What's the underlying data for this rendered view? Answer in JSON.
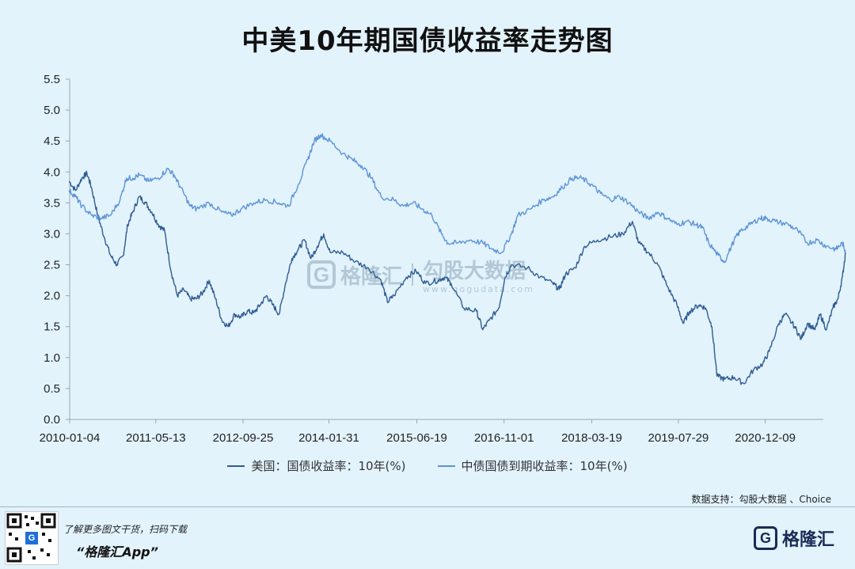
{
  "chart_data": {
    "type": "line",
    "title": "中美10年期国债收益率走势图",
    "xlabel": "",
    "ylabel": "",
    "ylim": [
      0,
      5.5
    ],
    "yticks": [
      "0.0",
      "0.5",
      "1.0",
      "1.5",
      "2.0",
      "2.5",
      "3.0",
      "3.5",
      "4.0",
      "4.5",
      "5.0",
      "5.5"
    ],
    "xticks": [
      "2010-01-04",
      "2011-05-13",
      "2012-09-25",
      "2014-01-31",
      "2015-06-19",
      "2016-11-01",
      "2018-03-19",
      "2019-07-29",
      "2020-12-09"
    ],
    "x_end": 2021.85,
    "legend_position": "bottom",
    "grid": false,
    "series": [
      {
        "name": "美国：国债收益率：10年(%)",
        "color": "#2f5b93",
        "points": [
          [
            2010.0,
            3.85
          ],
          [
            2010.1,
            3.7
          ],
          [
            2010.2,
            3.9
          ],
          [
            2010.28,
            3.98
          ],
          [
            2010.35,
            3.75
          ],
          [
            2010.45,
            3.3
          ],
          [
            2010.55,
            2.95
          ],
          [
            2010.65,
            2.65
          ],
          [
            2010.75,
            2.5
          ],
          [
            2010.85,
            2.65
          ],
          [
            2010.92,
            3.15
          ],
          [
            2011.0,
            3.35
          ],
          [
            2011.1,
            3.6
          ],
          [
            2011.2,
            3.5
          ],
          [
            2011.3,
            3.35
          ],
          [
            2011.4,
            3.15
          ],
          [
            2011.5,
            3.05
          ],
          [
            2011.6,
            2.4
          ],
          [
            2011.7,
            2.0
          ],
          [
            2011.8,
            2.1
          ],
          [
            2011.9,
            1.95
          ],
          [
            2012.0,
            1.95
          ],
          [
            2012.1,
            2.05
          ],
          [
            2012.2,
            2.25
          ],
          [
            2012.3,
            1.95
          ],
          [
            2012.4,
            1.6
          ],
          [
            2012.5,
            1.5
          ],
          [
            2012.6,
            1.7
          ],
          [
            2012.7,
            1.65
          ],
          [
            2012.8,
            1.75
          ],
          [
            2012.9,
            1.72
          ],
          [
            2013.0,
            1.85
          ],
          [
            2013.1,
            2.0
          ],
          [
            2013.2,
            1.85
          ],
          [
            2013.3,
            1.7
          ],
          [
            2013.4,
            2.2
          ],
          [
            2013.5,
            2.6
          ],
          [
            2013.6,
            2.75
          ],
          [
            2013.7,
            2.9
          ],
          [
            2013.8,
            2.6
          ],
          [
            2013.9,
            2.8
          ],
          [
            2014.0,
            3.0
          ],
          [
            2014.1,
            2.7
          ],
          [
            2014.3,
            2.7
          ],
          [
            2014.5,
            2.55
          ],
          [
            2014.7,
            2.45
          ],
          [
            2014.9,
            2.25
          ],
          [
            2015.0,
            1.9
          ],
          [
            2015.1,
            2.0
          ],
          [
            2015.3,
            2.3
          ],
          [
            2015.45,
            2.4
          ],
          [
            2015.6,
            2.2
          ],
          [
            2015.8,
            2.25
          ],
          [
            2015.9,
            2.3
          ],
          [
            2016.0,
            2.2
          ],
          [
            2016.2,
            1.8
          ],
          [
            2016.4,
            1.75
          ],
          [
            2016.5,
            1.45
          ],
          [
            2016.6,
            1.6
          ],
          [
            2016.75,
            1.8
          ],
          [
            2016.85,
            2.3
          ],
          [
            2016.95,
            2.5
          ],
          [
            2017.2,
            2.45
          ],
          [
            2017.4,
            2.3
          ],
          [
            2017.6,
            2.2
          ],
          [
            2017.7,
            2.1
          ],
          [
            2017.8,
            2.35
          ],
          [
            2017.95,
            2.45
          ],
          [
            2018.1,
            2.8
          ],
          [
            2018.3,
            2.9
          ],
          [
            2018.5,
            2.95
          ],
          [
            2018.7,
            3.0
          ],
          [
            2018.85,
            3.2
          ],
          [
            2018.95,
            2.85
          ],
          [
            2019.1,
            2.7
          ],
          [
            2019.25,
            2.5
          ],
          [
            2019.4,
            2.15
          ],
          [
            2019.55,
            1.85
          ],
          [
            2019.65,
            1.55
          ],
          [
            2019.75,
            1.75
          ],
          [
            2019.9,
            1.85
          ],
          [
            2020.0,
            1.8
          ],
          [
            2020.1,
            1.5
          ],
          [
            2020.18,
            0.7
          ],
          [
            2020.3,
            0.65
          ],
          [
            2020.45,
            0.68
          ],
          [
            2020.6,
            0.58
          ],
          [
            2020.75,
            0.8
          ],
          [
            2020.9,
            0.9
          ],
          [
            2021.0,
            1.1
          ],
          [
            2021.15,
            1.55
          ],
          [
            2021.25,
            1.7
          ],
          [
            2021.4,
            1.5
          ],
          [
            2021.5,
            1.3
          ],
          [
            2021.6,
            1.55
          ],
          [
            2021.72,
            1.45
          ],
          [
            2021.8,
            1.7
          ],
          [
            2021.9,
            1.45
          ],
          [
            2022.0,
            1.8
          ],
          [
            2022.08,
            1.95
          ],
          [
            2022.15,
            2.3
          ],
          [
            2022.2,
            2.7
          ]
        ]
      },
      {
        "name": "中债国债到期收益率：10年(%)",
        "color": "#5d93d8",
        "points": [
          [
            2010.0,
            3.7
          ],
          [
            2010.1,
            3.6
          ],
          [
            2010.2,
            3.45
          ],
          [
            2010.35,
            3.3
          ],
          [
            2010.5,
            3.25
          ],
          [
            2010.65,
            3.3
          ],
          [
            2010.8,
            3.55
          ],
          [
            2010.9,
            3.9
          ],
          [
            2011.0,
            3.9
          ],
          [
            2011.1,
            3.95
          ],
          [
            2011.25,
            3.85
          ],
          [
            2011.4,
            3.9
          ],
          [
            2011.55,
            4.05
          ],
          [
            2011.65,
            3.95
          ],
          [
            2011.75,
            3.75
          ],
          [
            2011.9,
            3.45
          ],
          [
            2012.0,
            3.4
          ],
          [
            2012.2,
            3.5
          ],
          [
            2012.4,
            3.35
          ],
          [
            2012.55,
            3.3
          ],
          [
            2012.7,
            3.4
          ],
          [
            2012.9,
            3.5
          ],
          [
            2013.1,
            3.55
          ],
          [
            2013.3,
            3.5
          ],
          [
            2013.45,
            3.45
          ],
          [
            2013.6,
            3.8
          ],
          [
            2013.75,
            4.2
          ],
          [
            2013.85,
            4.5
          ],
          [
            2013.95,
            4.6
          ],
          [
            2014.1,
            4.5
          ],
          [
            2014.3,
            4.3
          ],
          [
            2014.45,
            4.2
          ],
          [
            2014.6,
            4.1
          ],
          [
            2014.75,
            3.9
          ],
          [
            2014.9,
            3.6
          ],
          [
            2015.1,
            3.55
          ],
          [
            2015.25,
            3.45
          ],
          [
            2015.4,
            3.5
          ],
          [
            2015.55,
            3.4
          ],
          [
            2015.7,
            3.3
          ],
          [
            2015.85,
            3.0
          ],
          [
            2015.95,
            2.85
          ],
          [
            2016.1,
            2.85
          ],
          [
            2016.3,
            2.9
          ],
          [
            2016.5,
            2.85
          ],
          [
            2016.65,
            2.75
          ],
          [
            2016.8,
            2.7
          ],
          [
            2016.95,
            3.0
          ],
          [
            2017.05,
            3.3
          ],
          [
            2017.25,
            3.4
          ],
          [
            2017.45,
            3.55
          ],
          [
            2017.6,
            3.6
          ],
          [
            2017.75,
            3.75
          ],
          [
            2017.9,
            3.9
          ],
          [
            2018.05,
            3.9
          ],
          [
            2018.2,
            3.8
          ],
          [
            2018.35,
            3.65
          ],
          [
            2018.5,
            3.55
          ],
          [
            2018.65,
            3.6
          ],
          [
            2018.8,
            3.5
          ],
          [
            2018.95,
            3.35
          ],
          [
            2019.1,
            3.25
          ],
          [
            2019.25,
            3.35
          ],
          [
            2019.4,
            3.25
          ],
          [
            2019.55,
            3.15
          ],
          [
            2019.7,
            3.2
          ],
          [
            2019.85,
            3.15
          ],
          [
            2019.95,
            3.1
          ],
          [
            2020.05,
            2.85
          ],
          [
            2020.2,
            2.65
          ],
          [
            2020.3,
            2.55
          ],
          [
            2020.45,
            2.9
          ],
          [
            2020.55,
            3.05
          ],
          [
            2020.7,
            3.15
          ],
          [
            2020.85,
            3.25
          ],
          [
            2020.95,
            3.25
          ],
          [
            2021.1,
            3.2
          ],
          [
            2021.3,
            3.15
          ],
          [
            2021.45,
            3.05
          ],
          [
            2021.6,
            2.85
          ],
          [
            2021.75,
            2.9
          ],
          [
            2021.9,
            2.8
          ],
          [
            2022.05,
            2.75
          ],
          [
            2022.15,
            2.85
          ],
          [
            2022.2,
            2.72
          ]
        ]
      }
    ]
  },
  "watermark": {
    "brand": "格隆汇",
    "product": "勾股大数据",
    "url": "www.gogudata.com"
  },
  "source": "数据支持：勾股大数据 、Choice",
  "footer": {
    "promo_line": "了解更多图文干货，扫码下载",
    "app_name": "“格隆汇App”",
    "brand": "格隆汇"
  }
}
